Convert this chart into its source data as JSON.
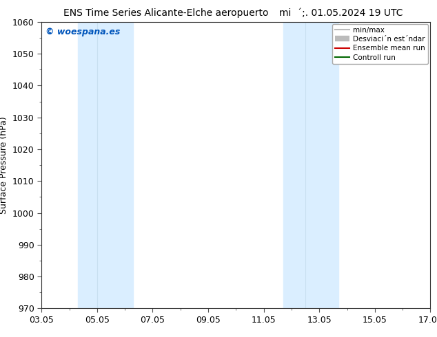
{
  "title_left": "ENS Time Series Alicante-Elche aeropuerto",
  "title_right": "mi  acute;. 01.05.2024 19 UTC",
  "ylabel": "Surface Pressure (hPa)",
  "ylim": [
    970,
    1060
  ],
  "yticks": [
    970,
    980,
    990,
    1000,
    1010,
    1020,
    1030,
    1040,
    1050,
    1060
  ],
  "xlim_start": 0.0,
  "xlim_end": 14.0,
  "xtick_labels": [
    "03.05",
    "05.05",
    "07.05",
    "09.05",
    "11.05",
    "13.05",
    "15.05",
    "17.05"
  ],
  "xtick_positions": [
    0,
    2,
    4,
    6,
    8,
    10,
    12,
    14
  ],
  "shaded_bands": [
    {
      "x_start": 1.3,
      "x_end": 2.0,
      "color": "#daeeff"
    },
    {
      "x_start": 2.0,
      "x_end": 3.3,
      "color": "#daeeff"
    },
    {
      "x_start": 8.7,
      "x_end": 9.5,
      "color": "#daeeff"
    },
    {
      "x_start": 9.5,
      "x_end": 10.7,
      "color": "#daeeff"
    }
  ],
  "shade_color": "#daeeff",
  "watermark": "© woespana.es",
  "watermark_color": "#0055bb",
  "legend_labels": [
    "min/max",
    "Desviaci  acute;n est  acute;ndar",
    "Ensemble mean run",
    "Controll run"
  ],
  "legend_colors": [
    "#bbbbbb",
    "#cccccc",
    "#cc0000",
    "#006600"
  ],
  "legend_lw": [
    1.5,
    6,
    1.5,
    1.5
  ],
  "bg_color": "#ffffff",
  "title_fontsize": 10,
  "tick_fontsize": 9,
  "ylabel_fontsize": 9
}
